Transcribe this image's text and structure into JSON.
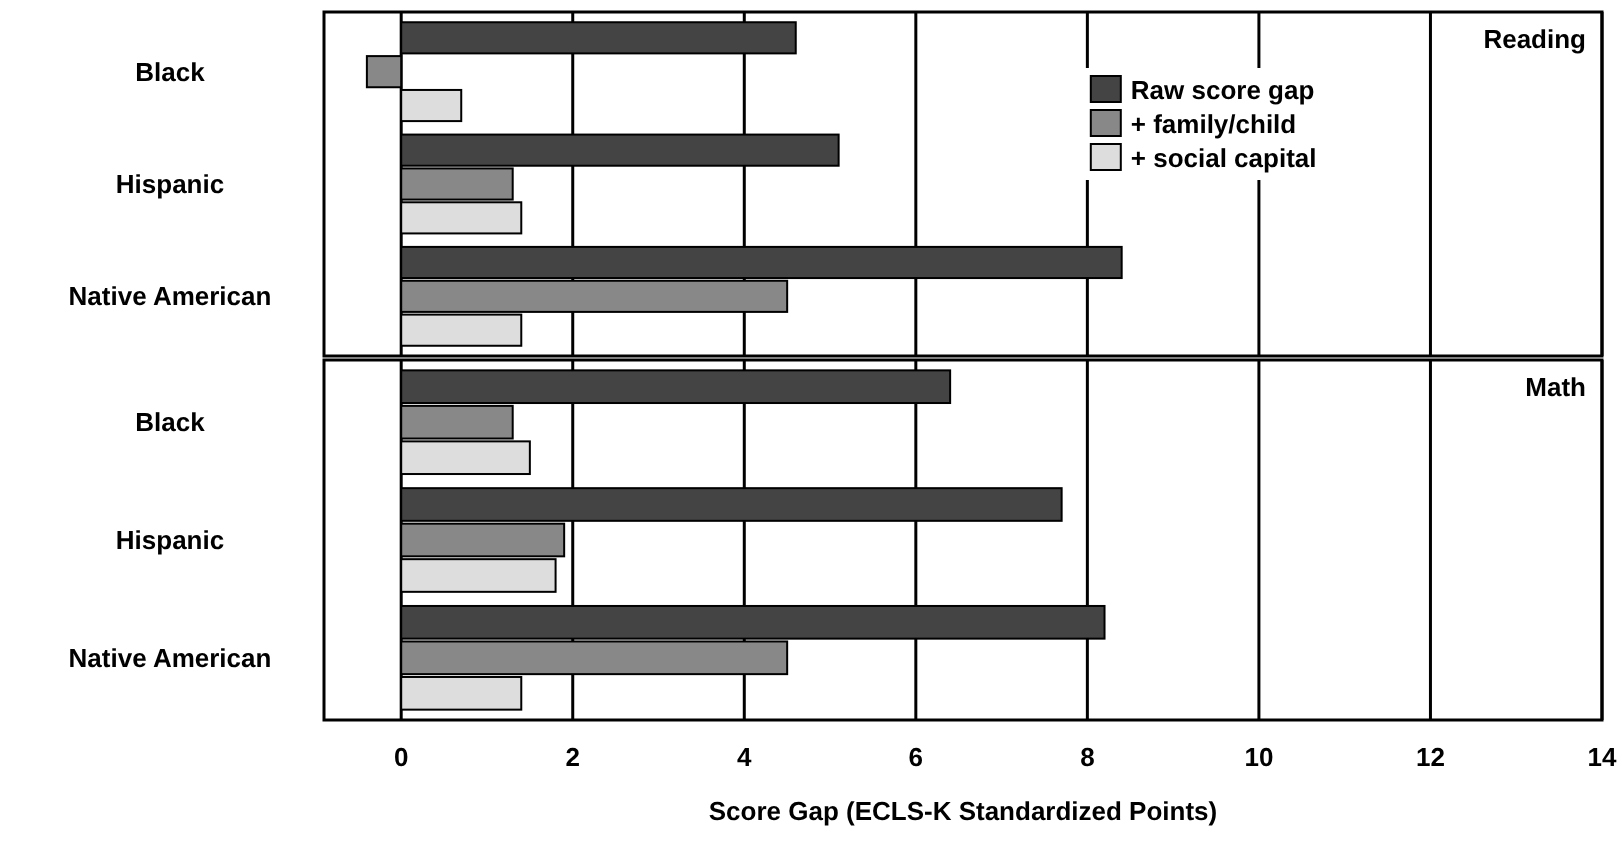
{
  "chart_data": [
    {
      "type": "bar",
      "orientation": "horizontal",
      "title": "Reading",
      "categories": [
        "Black",
        "Hispanic",
        "Native American"
      ],
      "xlim": [
        -0.9,
        14
      ],
      "xticks": [
        0,
        2,
        4,
        6,
        8,
        10,
        12,
        14
      ],
      "grid": "x",
      "legend": "top right",
      "tick_labels": "y",
      "series": [
        {
          "name": "Raw score gap",
          "color": "#444444",
          "values": [
            4.6,
            5.1,
            8.4
          ]
        },
        {
          "name": "+ family/child",
          "color": "#888888",
          "values": [
            -0.4,
            1.3,
            4.5
          ]
        },
        {
          "name": "+ social capital",
          "color": "#dddddd",
          "values": [
            0.7,
            1.4,
            1.4
          ]
        }
      ]
    },
    {
      "type": "bar",
      "orientation": "horizontal",
      "title": "Math",
      "categories": [
        "Black",
        "Hispanic",
        "Native American"
      ],
      "xlim": [
        -0.9,
        14
      ],
      "xticks": [
        0,
        2,
        4,
        6,
        8,
        10,
        12,
        14
      ],
      "grid": "x",
      "xlabel": "Score Gap (ECLS-K Standardized Points)",
      "series": [
        {
          "color": "#444444",
          "values": [
            6.4,
            7.7,
            8.2
          ]
        },
        {
          "color": "#888888",
          "values": [
            1.3,
            1.9,
            4.5
          ]
        },
        {
          "color": "#dddddd",
          "values": [
            1.5,
            1.8,
            1.4
          ]
        }
      ]
    }
  ]
}
